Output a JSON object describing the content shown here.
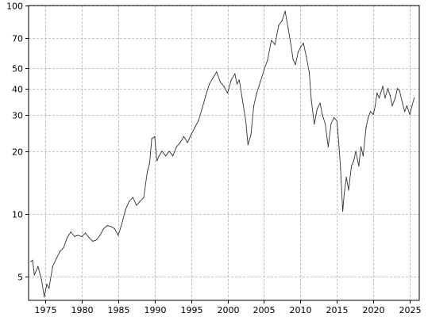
{
  "chart_data": {
    "type": "line",
    "title": "",
    "xlabel": "",
    "ylabel": "",
    "y_scale": "log",
    "xlim": [
      1972.7,
      2026.3
    ],
    "ylim": [
      3.85,
      100
    ],
    "x_ticks": [
      1975,
      1980,
      1985,
      1990,
      1995,
      2000,
      2005,
      2010,
      2015,
      2020,
      2025
    ],
    "x_tick_labels": [
      "1975",
      "1980",
      "1985",
      "1990",
      "1995",
      "2000",
      "2005",
      "2010",
      "2015",
      "2020",
      "2025"
    ],
    "y_ticks": [
      5,
      10,
      20,
      30,
      40,
      50,
      70,
      100
    ],
    "y_tick_labels": [
      "5",
      "10",
      "20",
      "30",
      "40",
      "50",
      "70",
      "100"
    ],
    "grid": true,
    "grid_style": "dashed",
    "line_color": "#333333",
    "series": [
      {
        "x": [
          1973.0,
          1973.25,
          1973.5,
          1974.0,
          1974.5,
          1974.85,
          1975.2,
          1975.5,
          1976.0,
          1976.5,
          1977.0,
          1977.5,
          1978.0,
          1978.5,
          1979.0,
          1979.5,
          1980.0,
          1980.5,
          1981.0,
          1981.5,
          1982.0,
          1982.5,
          1983.0,
          1983.5,
          1984.0,
          1984.5,
          1985.0,
          1985.5,
          1986.0,
          1986.5,
          1987.0,
          1987.5,
          1988.0,
          1988.5,
          1989.0,
          1989.3,
          1989.6,
          1990.0,
          1990.3,
          1990.6,
          1991.0,
          1991.5,
          1992.0,
          1992.5,
          1993.0,
          1993.5,
          1994.0,
          1994.5,
          1995.0,
          1995.5,
          1996.0,
          1996.5,
          1997.0,
          1997.5,
          1998.0,
          1998.5,
          1999.0,
          1999.5,
          2000.0,
          2000.5,
          2001.0,
          2001.3,
          2001.6,
          2002.0,
          2002.5,
          2002.8,
          2003.2,
          2003.6,
          2004.0,
          2004.5,
          2005.0,
          2005.5,
          2006.0,
          2006.5,
          2007.0,
          2007.5,
          2007.9,
          2008.3,
          2008.6,
          2009.0,
          2009.3,
          2009.7,
          2010.0,
          2010.4,
          2010.8,
          2011.2,
          2011.5,
          2011.9,
          2012.3,
          2012.7,
          2013.0,
          2013.4,
          2013.8,
          2014.2,
          2014.6,
          2015.0,
          2015.25,
          2015.5,
          2015.8,
          2016.0,
          2016.3,
          2016.6,
          2017.0,
          2017.3,
          2017.6,
          2018.0,
          2018.3,
          2018.6,
          2019.0,
          2019.3,
          2019.6,
          2020.0,
          2020.25,
          2020.5,
          2020.8,
          2021.0,
          2021.3,
          2021.6,
          2022.0,
          2022.3,
          2022.6,
          2023.0,
          2023.3,
          2023.6,
          2024.0,
          2024.3,
          2024.6,
          2025.0,
          2025.3,
          2025.6
        ],
        "values": [
          5.9,
          6.0,
          5.1,
          5.6,
          4.8,
          4.0,
          4.6,
          4.4,
          5.6,
          6.1,
          6.6,
          6.9,
          7.7,
          8.2,
          7.8,
          7.9,
          7.8,
          8.1,
          7.7,
          7.4,
          7.5,
          7.9,
          8.5,
          8.8,
          8.7,
          8.5,
          7.9,
          9.0,
          10.5,
          11.5,
          12.0,
          11.0,
          11.5,
          12.0,
          16.0,
          17.5,
          23.0,
          23.5,
          18.0,
          19.0,
          20.0,
          19.0,
          20.0,
          19.0,
          21.0,
          22.0,
          23.5,
          22.0,
          24.0,
          26.0,
          28.0,
          32.0,
          37.0,
          42.0,
          45.0,
          48.0,
          43.0,
          41.0,
          38.0,
          44.0,
          47.0,
          42.0,
          44.0,
          36.0,
          28.0,
          21.5,
          24.0,
          33.0,
          38.0,
          43.0,
          49.0,
          55.0,
          68.0,
          65.0,
          80.0,
          85.0,
          94.0,
          78.0,
          68.0,
          55.0,
          52.0,
          60.0,
          63.0,
          66.0,
          57.0,
          48.0,
          35.0,
          27.0,
          32.0,
          34.0,
          30.0,
          27.0,
          21.0,
          27.0,
          29.0,
          28.0,
          22.0,
          16.5,
          10.3,
          12.5,
          15.0,
          13.0,
          17.0,
          18.0,
          20.0,
          17.0,
          21.0,
          19.0,
          26.0,
          29.0,
          31.0,
          30.0,
          33.0,
          38.0,
          36.0,
          38.0,
          41.0,
          36.0,
          40.0,
          37.0,
          33.0,
          36.0,
          40.0,
          39.0,
          34.0,
          31.0,
          33.0,
          30.0,
          33.0,
          36.0
        ]
      }
    ]
  }
}
